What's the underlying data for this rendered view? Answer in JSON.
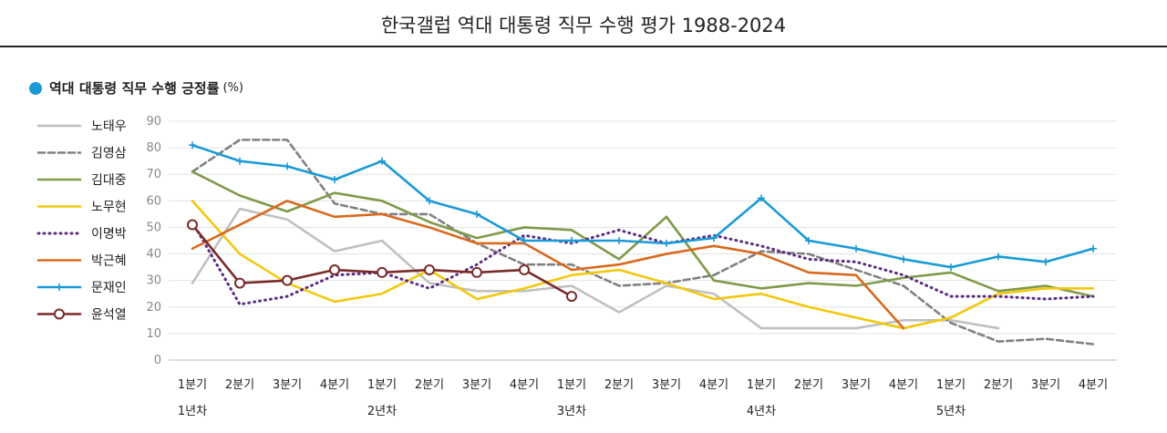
{
  "title": "한국갤럽 역대 대통령 직무 수행 평가 1988-2024",
  "subtitle": "역대 대통령 직무 수행 긍정률",
  "subtitle_unit": "(%)",
  "colors": {
    "accent_dot": "#1a9ad6",
    "grid": "#e3e3e3",
    "axis": "#bdbdbd"
  },
  "chart_data": {
    "type": "line",
    "title": "역대 대통령 직무 수행 긍정률",
    "ylabel": "(%)",
    "ylim": [
      0,
      90
    ],
    "yticks": [
      0,
      10,
      20,
      30,
      40,
      50,
      60,
      70,
      80,
      90
    ],
    "grid": true,
    "legend_position": "left",
    "categories": [
      "1분기",
      "2분기",
      "3분기",
      "4분기",
      "1분기",
      "2분기",
      "3분기",
      "4분기",
      "1분기",
      "2분기",
      "3분기",
      "4분기",
      "1분기",
      "2분기",
      "3분기",
      "4분기",
      "1분기",
      "2분기",
      "3분기",
      "4분기"
    ],
    "year_labels": [
      {
        "index": 0,
        "label": "1년차"
      },
      {
        "index": 4,
        "label": "2년차"
      },
      {
        "index": 8,
        "label": "3년차"
      },
      {
        "index": 12,
        "label": "4년차"
      },
      {
        "index": 16,
        "label": "5년차"
      }
    ],
    "series": [
      {
        "name": "노태우",
        "color": "#c0c0c0",
        "style": "solid",
        "values": [
          29,
          57,
          53,
          41,
          45,
          29,
          26,
          26,
          28,
          18,
          28,
          25,
          12,
          12,
          12,
          15,
          15,
          12,
          null,
          null
        ]
      },
      {
        "name": "김영삼",
        "color": "#808080",
        "style": "dashed",
        "values": [
          71,
          83,
          83,
          59,
          55,
          55,
          44,
          36,
          36,
          28,
          29,
          32,
          41,
          40,
          34,
          28,
          14,
          7,
          8,
          6
        ]
      },
      {
        "name": "김대중",
        "color": "#7f9a48",
        "style": "solid",
        "values": [
          71,
          62,
          56,
          63,
          60,
          52,
          46,
          50,
          49,
          38,
          54,
          30,
          27,
          29,
          28,
          31,
          33,
          26,
          28,
          24
        ]
      },
      {
        "name": "노무현",
        "color": "#f2c80f",
        "style": "solid",
        "values": [
          60,
          40,
          29,
          22,
          25,
          34,
          23,
          27,
          32,
          34,
          29,
          23,
          25,
          20,
          16,
          12,
          16,
          25,
          27,
          27
        ]
      },
      {
        "name": "이명박",
        "color": "#5b2c82",
        "style": "dotted",
        "values": [
          52,
          21,
          24,
          32,
          33,
          27,
          36,
          47,
          44,
          49,
          44,
          47,
          43,
          38,
          37,
          32,
          24,
          24,
          23,
          24
        ]
      },
      {
        "name": "박근혜",
        "color": "#d9691e",
        "style": "solid",
        "values": [
          42,
          51,
          60,
          54,
          55,
          50,
          44,
          44,
          34,
          36,
          40,
          43,
          40,
          33,
          32,
          12,
          null,
          null,
          null,
          null
        ]
      },
      {
        "name": "문재인",
        "color": "#1a9ad6",
        "style": "solid-plus",
        "values": [
          81,
          75,
          73,
          68,
          75,
          60,
          55,
          45,
          45,
          45,
          44,
          46,
          61,
          45,
          42,
          38,
          35,
          39,
          37,
          42
        ]
      },
      {
        "name": "윤석열",
        "color": "#7a2a2a",
        "style": "solid-circle",
        "values": [
          51,
          29,
          30,
          34,
          33,
          34,
          33,
          34,
          24,
          null,
          null,
          null,
          null,
          null,
          null,
          null,
          null,
          null,
          null,
          null
        ]
      }
    ]
  }
}
